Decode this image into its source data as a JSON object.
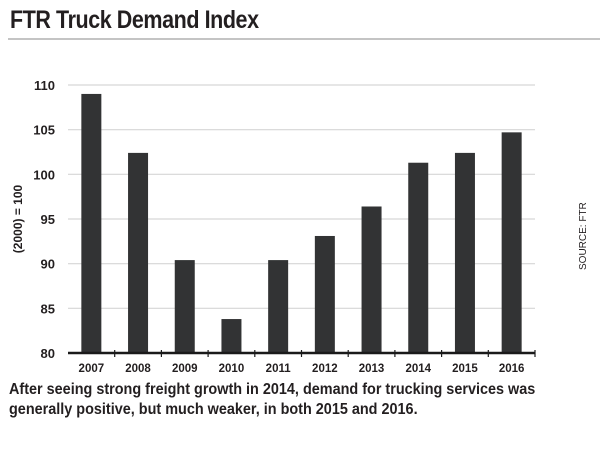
{
  "header": {
    "title": "FTR Truck Demand Index"
  },
  "source": "SOURCE: FTR",
  "caption_lines": [
    "After seeing strong freight growth in 2014, demand for trucking services was",
    "generally positive, but much weaker, in both 2015 and 2016."
  ],
  "colors": {
    "bar": "#323334",
    "grid": "#d6d6d6",
    "axis": "#1a1a1a",
    "text": "#231f20"
  },
  "chart_data": {
    "type": "bar",
    "title": "FTR Truck Demand Index",
    "xlabel": "",
    "ylabel": "(2000) = 100",
    "categories": [
      "2007",
      "2008",
      "2009",
      "2010",
      "2011",
      "2012",
      "2013",
      "2014",
      "2015",
      "2016"
    ],
    "values": [
      109.0,
      102.4,
      90.4,
      83.8,
      90.4,
      93.1,
      96.4,
      101.3,
      102.4,
      104.7
    ],
    "ylim": [
      80,
      110
    ],
    "yticks": [
      80,
      85,
      90,
      95,
      100,
      105,
      110
    ],
    "grid": true,
    "legend": "none"
  }
}
